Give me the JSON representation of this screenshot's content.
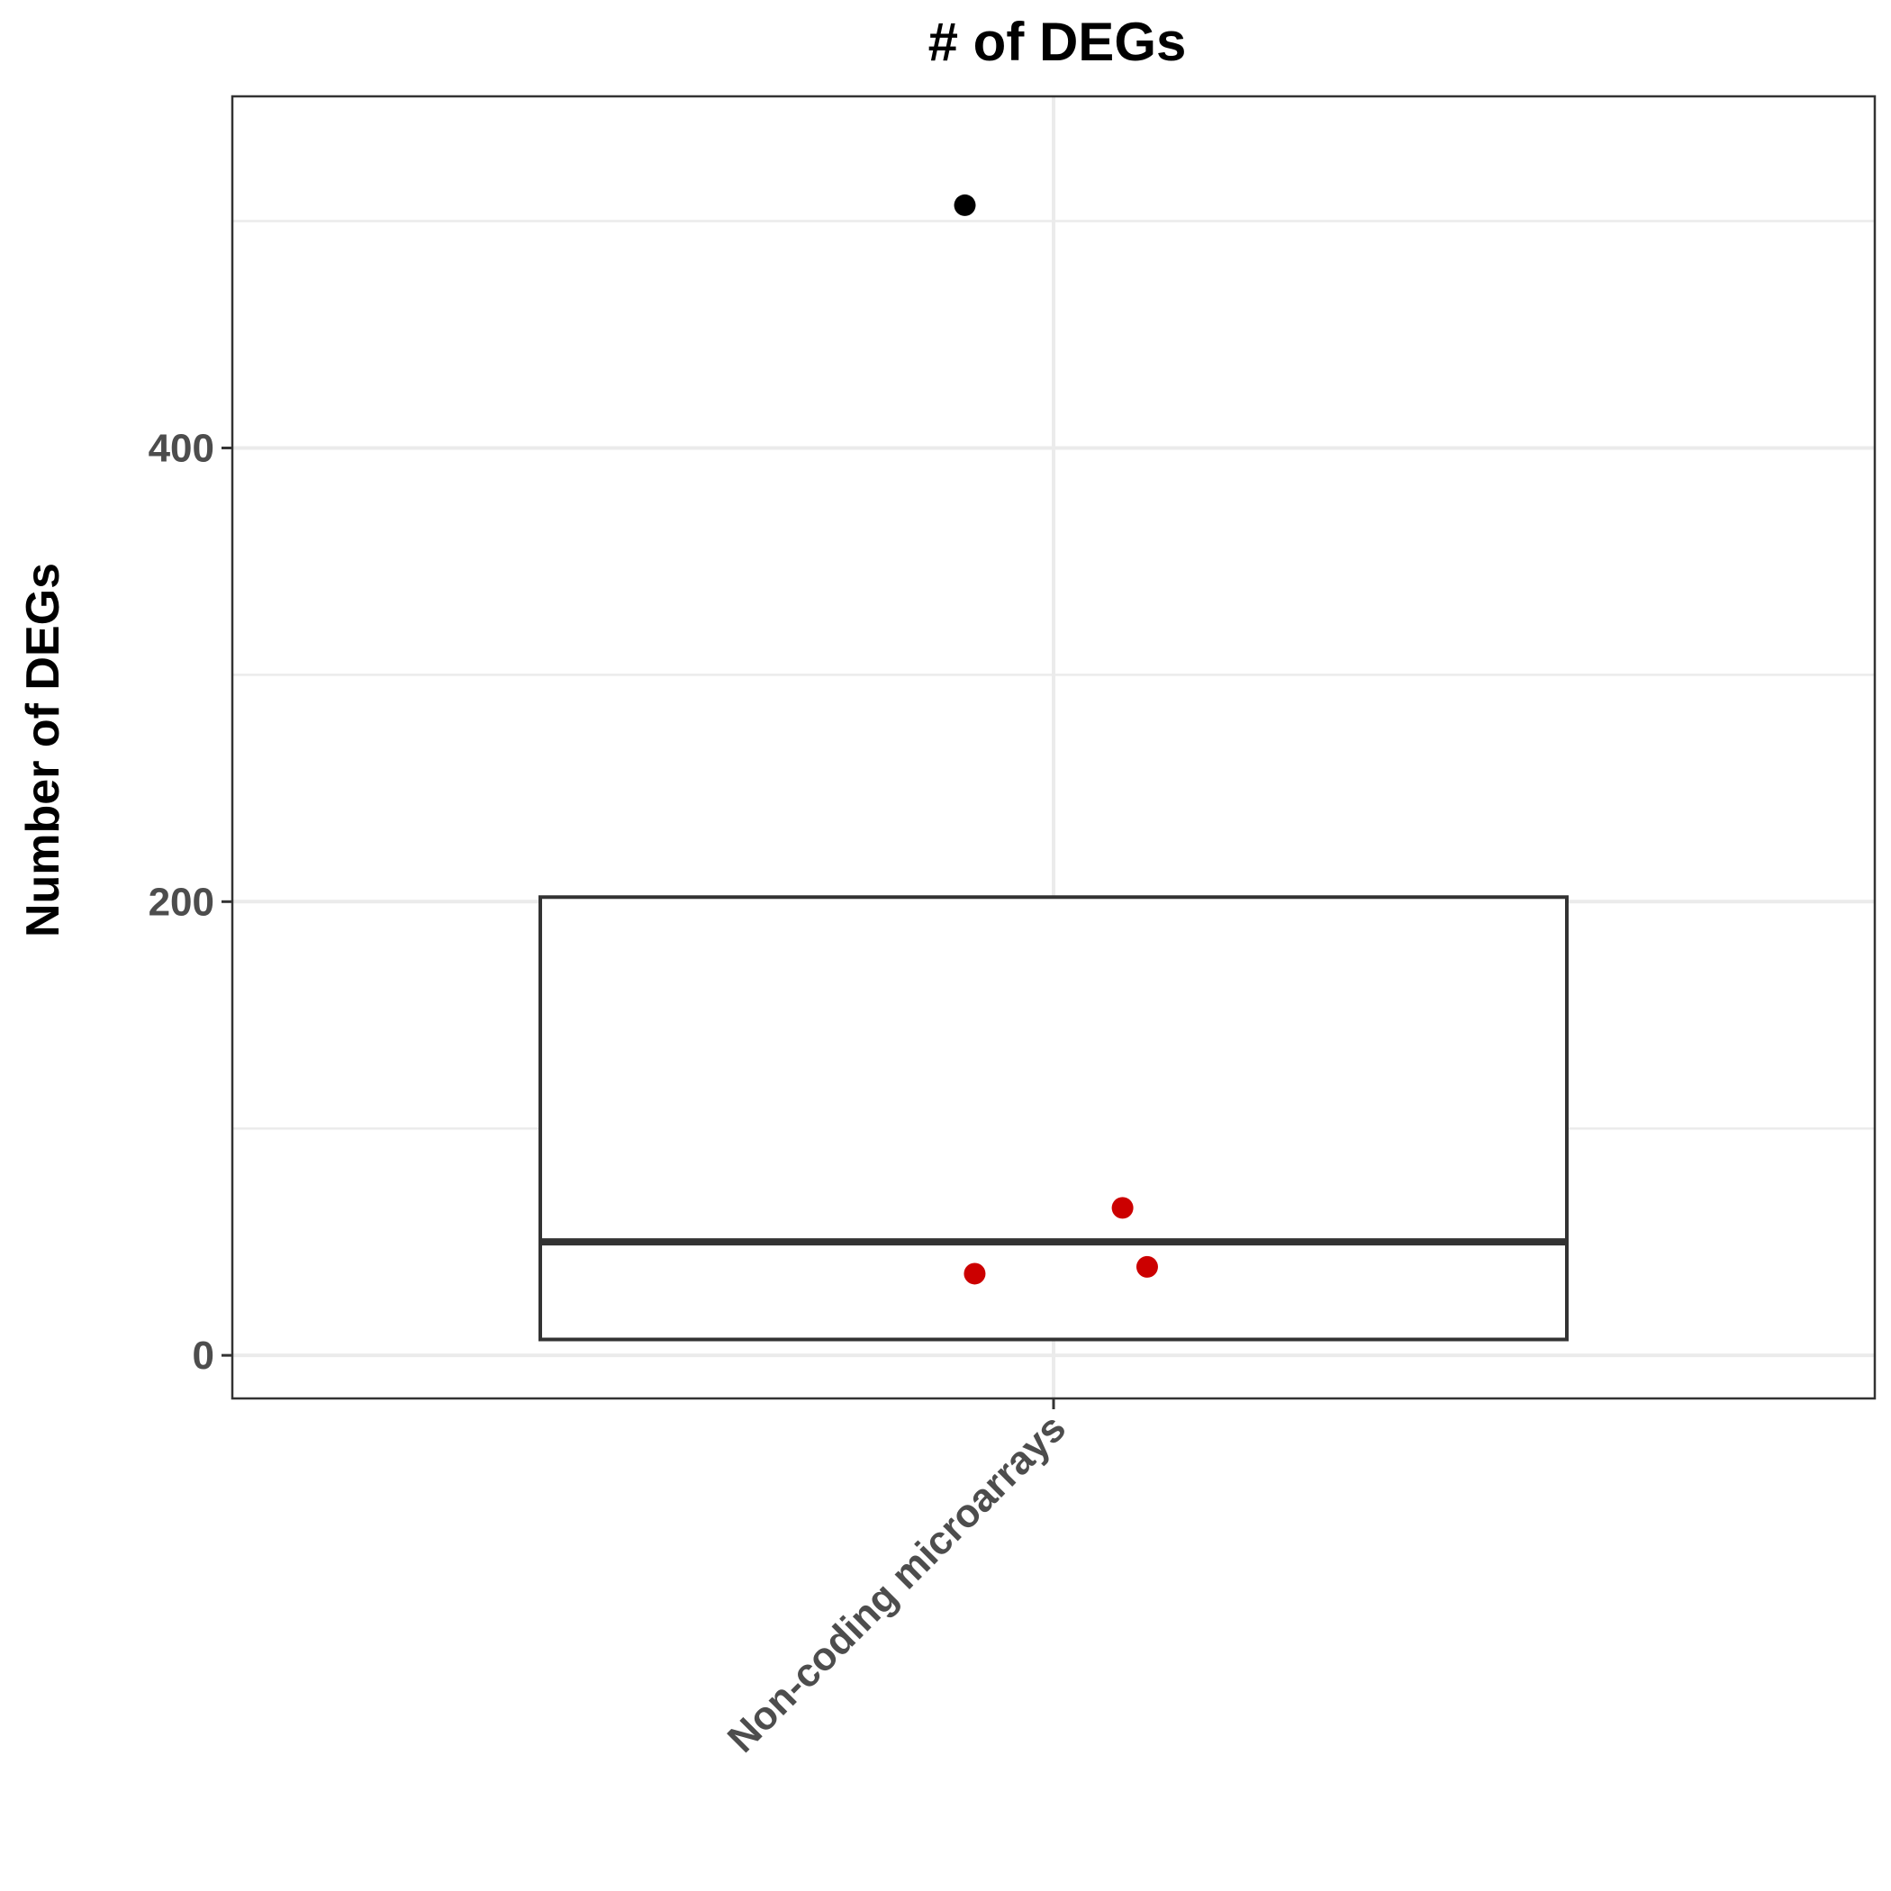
{
  "chart_data": {
    "type": "box",
    "title": "# of DEGs",
    "xlabel": "",
    "ylabel": "Number of DEGs",
    "categories": [
      "Non-coding microarrays"
    ],
    "y_ticks": [
      0,
      200,
      400
    ],
    "ylim": [
      -19,
      555
    ],
    "grid": true,
    "box": {
      "category": "Non-coding microarrays",
      "q1": 7,
      "median": 50,
      "q3": 202,
      "whisker_low": 7,
      "whisker_high": 202
    },
    "outliers": [
      {
        "category": "Non-coding microarrays",
        "y": 507,
        "color": "#000000"
      }
    ],
    "jitter_points": [
      {
        "category": "Non-coding microarrays",
        "offset": 0.07,
        "y": 65,
        "color": "#cc0000"
      },
      {
        "category": "Non-coding microarrays",
        "offset": -0.08,
        "y": 36,
        "color": "#cc0000"
      },
      {
        "category": "Non-coding microarrays",
        "offset": 0.095,
        "y": 39,
        "color": "#cc0000"
      }
    ],
    "colors": {
      "jitter": "#cc0000",
      "outlier": "#000000",
      "box_line": "#333333"
    }
  }
}
